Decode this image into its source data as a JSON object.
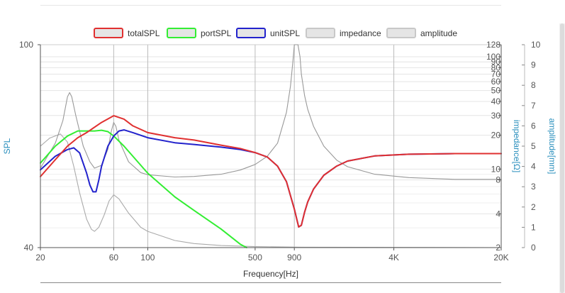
{
  "chart_data": {
    "type": "line",
    "title": "",
    "xlabel": "Frequency[Hz]",
    "x_scale": "log",
    "xlim": [
      20,
      20000
    ],
    "x_ticks": [
      {
        "value": 20,
        "label": "20"
      },
      {
        "value": 60,
        "label": "60"
      },
      {
        "value": 100,
        "label": "100"
      },
      {
        "value": 500,
        "label": "500"
      },
      {
        "value": 900,
        "label": "900"
      },
      {
        "value": 4000,
        "label": "4K"
      },
      {
        "value": 20000,
        "label": "20K"
      }
    ],
    "left_axis": {
      "label": "SPL",
      "ylim": [
        40,
        100
      ],
      "ticks": [
        {
          "value": 40,
          "label": "40"
        },
        {
          "value": 100,
          "label": "100"
        }
      ]
    },
    "impedance_axis": {
      "label": "impedance[Ω]",
      "scale": "log",
      "ylim": [
        2,
        128
      ],
      "ticks": [
        {
          "value": 2,
          "label": "2"
        },
        {
          "value": 4,
          "label": "4"
        },
        {
          "value": 8,
          "label": "8"
        },
        {
          "value": 10,
          "label": "10"
        },
        {
          "value": 20,
          "label": "20"
        },
        {
          "value": 30,
          "label": "30"
        },
        {
          "value": 40,
          "label": "40"
        },
        {
          "value": 50,
          "label": "50"
        },
        {
          "value": 60,
          "label": "60"
        },
        {
          "value": 70,
          "label": "70"
        },
        {
          "value": 80,
          "label": "80"
        },
        {
          "value": 90,
          "label": "90"
        },
        {
          "value": 100,
          "label": "100"
        },
        {
          "value": 128,
          "label": "128"
        }
      ]
    },
    "amplitude_axis": {
      "label": "amplitude[mm]",
      "ylim": [
        0,
        10
      ],
      "ticks": [
        {
          "value": 0,
          "label": "0"
        },
        {
          "value": 1,
          "label": "1"
        },
        {
          "value": 2,
          "label": "2"
        },
        {
          "value": 3,
          "label": "3"
        },
        {
          "value": 4,
          "label": "4"
        },
        {
          "value": 5,
          "label": "5"
        },
        {
          "value": 6,
          "label": "6"
        },
        {
          "value": 7,
          "label": "7"
        },
        {
          "value": 8,
          "label": "8"
        },
        {
          "value": 9,
          "label": "9"
        },
        {
          "value": 10,
          "label": "10"
        }
      ]
    },
    "grid": true,
    "legend_position": "top-center",
    "series": [
      {
        "name": "totalSPL",
        "axis": "spl",
        "color": "#e03030",
        "points": [
          [
            20,
            61
          ],
          [
            25,
            66
          ],
          [
            30,
            70
          ],
          [
            35,
            72.5
          ],
          [
            40,
            74
          ],
          [
            50,
            77
          ],
          [
            60,
            79
          ],
          [
            70,
            78
          ],
          [
            80,
            76
          ],
          [
            100,
            74
          ],
          [
            150,
            72.5
          ],
          [
            200,
            71.8
          ],
          [
            300,
            70.3
          ],
          [
            400,
            69.3
          ],
          [
            500,
            68.1
          ],
          [
            600,
            66.8
          ],
          [
            700,
            64.1
          ],
          [
            800,
            59.5
          ],
          [
            900,
            51.4
          ],
          [
            960,
            46.1
          ],
          [
            1000,
            46.6
          ],
          [
            1050,
            50.5
          ],
          [
            1100,
            53.5
          ],
          [
            1200,
            57.3
          ],
          [
            1400,
            61.4
          ],
          [
            1700,
            64.1
          ],
          [
            2000,
            65.6
          ],
          [
            3000,
            67.1
          ],
          [
            5000,
            67.6
          ],
          [
            10000,
            67.8
          ],
          [
            20000,
            67.8
          ]
        ]
      },
      {
        "name": "portSPL",
        "axis": "spl",
        "color": "#33ee33",
        "points": [
          [
            20,
            65
          ],
          [
            25,
            70
          ],
          [
            30,
            73
          ],
          [
            35,
            74.5
          ],
          [
            40,
            74.5
          ],
          [
            45,
            74.5
          ],
          [
            50,
            74.7
          ],
          [
            55,
            74.3
          ],
          [
            60,
            73
          ],
          [
            70,
            70
          ],
          [
            100,
            62
          ],
          [
            150,
            55
          ],
          [
            200,
            51
          ],
          [
            300,
            45.5
          ],
          [
            400,
            41
          ],
          [
            440,
            40
          ]
        ]
      },
      {
        "name": "unitSPL",
        "axis": "spl",
        "color": "#2222cc",
        "points": [
          [
            20,
            63
          ],
          [
            25,
            67
          ],
          [
            30,
            69
          ],
          [
            33,
            69.5
          ],
          [
            36,
            68
          ],
          [
            40,
            62
          ],
          [
            42,
            58.5
          ],
          [
            44,
            56.5
          ],
          [
            46,
            56.5
          ],
          [
            48,
            60
          ],
          [
            50,
            64
          ],
          [
            55,
            70
          ],
          [
            60,
            73
          ],
          [
            65,
            74.5
          ],
          [
            70,
            74.8
          ],
          [
            80,
            74
          ],
          [
            100,
            72.5
          ],
          [
            150,
            71
          ],
          [
            200,
            70.5
          ],
          [
            300,
            69.7
          ],
          [
            400,
            69
          ],
          [
            500,
            68.1
          ],
          [
            600,
            66.8
          ],
          [
            700,
            64.1
          ],
          [
            800,
            59.5
          ],
          [
            900,
            51.4
          ],
          [
            960,
            46.1
          ],
          [
            1000,
            46.6
          ],
          [
            1050,
            50.5
          ],
          [
            1100,
            53.5
          ],
          [
            1200,
            57.3
          ],
          [
            1400,
            61.4
          ],
          [
            1700,
            64.1
          ],
          [
            2000,
            65.6
          ],
          [
            3000,
            67.1
          ],
          [
            5000,
            67.6
          ],
          [
            10000,
            67.8
          ],
          [
            20000,
            67.8
          ]
        ]
      },
      {
        "name": "impedance",
        "axis": "impedance",
        "color": "#999999",
        "points": [
          [
            20,
            10.2
          ],
          [
            25,
            17
          ],
          [
            28,
            27
          ],
          [
            30,
            44
          ],
          [
            31,
            48
          ],
          [
            32,
            44
          ],
          [
            34,
            30
          ],
          [
            38,
            16
          ],
          [
            42,
            11.6
          ],
          [
            45,
            10.2
          ],
          [
            50,
            10.8
          ],
          [
            55,
            15
          ],
          [
            58,
            22
          ],
          [
            60,
            26
          ],
          [
            62,
            24
          ],
          [
            65,
            18
          ],
          [
            75,
            11.6
          ],
          [
            90,
            9.3
          ],
          [
            100,
            8.9
          ],
          [
            150,
            8.5
          ],
          [
            200,
            8.6
          ],
          [
            300,
            9
          ],
          [
            400,
            9.8
          ],
          [
            500,
            11
          ],
          [
            600,
            13
          ],
          [
            700,
            17
          ],
          [
            800,
            32
          ],
          [
            850,
            55
          ],
          [
            880,
            90
          ],
          [
            900,
            128
          ],
          [
            950,
            128
          ],
          [
            980,
            100
          ],
          [
            1000,
            70
          ],
          [
            1050,
            45
          ],
          [
            1100,
            34
          ],
          [
            1200,
            24
          ],
          [
            1400,
            16
          ],
          [
            1700,
            12
          ],
          [
            2000,
            10.5
          ],
          [
            3000,
            9
          ],
          [
            5000,
            8.4
          ],
          [
            10000,
            8.1
          ],
          [
            20000,
            8.1
          ]
        ]
      },
      {
        "name": "amplitude",
        "axis": "amplitude",
        "color": "#aaaaaa",
        "points": [
          [
            20,
            5
          ],
          [
            23,
            5.4
          ],
          [
            27,
            5.6
          ],
          [
            30,
            5.2
          ],
          [
            33,
            4
          ],
          [
            36,
            2.7
          ],
          [
            40,
            1.4
          ],
          [
            43,
            0.9
          ],
          [
            45,
            0.8
          ],
          [
            48,
            1
          ],
          [
            52,
            1.6
          ],
          [
            56,
            2.3
          ],
          [
            60,
            2.6
          ],
          [
            65,
            2.4
          ],
          [
            75,
            1.7
          ],
          [
            90,
            1
          ],
          [
            100,
            0.8
          ],
          [
            150,
            0.35
          ],
          [
            200,
            0.2
          ],
          [
            300,
            0.1
          ],
          [
            500,
            0.05
          ],
          [
            1000,
            0.02
          ],
          [
            20000,
            0
          ]
        ]
      }
    ]
  }
}
